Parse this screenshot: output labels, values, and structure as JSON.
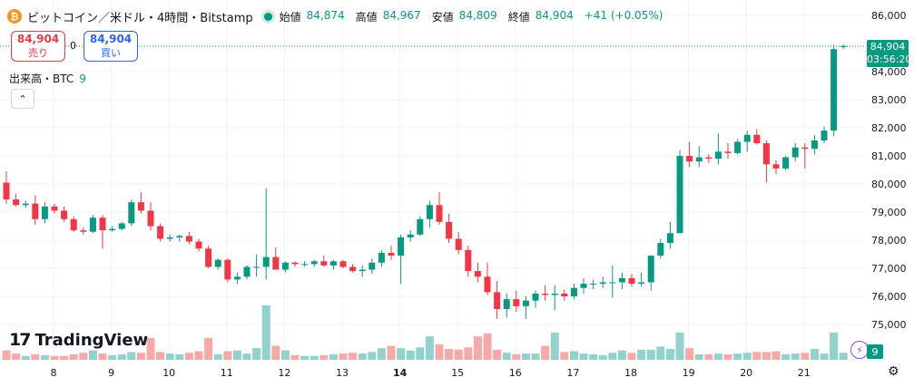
{
  "header": {
    "coin_glyph": "₿",
    "symbol": "ビットコイン／米ドル・4時間・Bitstamp",
    "ohlc": [
      {
        "label": "始値",
        "value": "84,874"
      },
      {
        "label": "高値",
        "value": "84,967"
      },
      {
        "label": "安値",
        "value": "84,809"
      },
      {
        "label": "終値",
        "value": "84,904"
      },
      {
        "label": "",
        "value": "+41 (+0.05%)"
      }
    ]
  },
  "trade": {
    "sell_price": "84,904",
    "sell_label": "売り",
    "buy_price": "84,904",
    "buy_label": "買い",
    "spread": "0"
  },
  "volume_indicator": {
    "label": "出来高・BTC",
    "value": "9"
  },
  "collapse_glyph": "⌃",
  "logo": {
    "mark": "17",
    "name": "TradingView"
  },
  "price_tag": {
    "price": "84,904",
    "countdown": "03:56:20"
  },
  "volume_tag": "9",
  "flash_glyph": "⚡",
  "settings_glyph": "⚙",
  "colors": {
    "up": "#089981",
    "down": "#f23645",
    "up_vol": "#92d2cc",
    "down_vol": "#f7a9a7",
    "grid": "#f0f3fa"
  },
  "chart_data": {
    "type": "candlestick",
    "y_ticks": [
      "86,000",
      "85,000",
      "84,000",
      "83,000",
      "82,000",
      "81,000",
      "80,000",
      "79,000",
      "78,000",
      "77,000",
      "76,000",
      "75,000"
    ],
    "ylim": [
      74300,
      86300
    ],
    "x_ticks": [
      {
        "label": "8",
        "index": 5,
        "bold": false
      },
      {
        "label": "9",
        "index": 11,
        "bold": false
      },
      {
        "label": "10",
        "index": 17,
        "bold": false
      },
      {
        "label": "11",
        "index": 23,
        "bold": false
      },
      {
        "label": "12",
        "index": 29,
        "bold": false
      },
      {
        "label": "13",
        "index": 35,
        "bold": false
      },
      {
        "label": "14",
        "index": 41,
        "bold": true
      },
      {
        "label": "15",
        "index": 47,
        "bold": false
      },
      {
        "label": "16",
        "index": 53,
        "bold": false
      },
      {
        "label": "17",
        "index": 59,
        "bold": false
      },
      {
        "label": "18",
        "index": 65,
        "bold": false
      },
      {
        "label": "19",
        "index": 71,
        "bold": false
      },
      {
        "label": "20",
        "index": 77,
        "bold": false
      },
      {
        "label": "21",
        "index": 83,
        "bold": false
      }
    ],
    "candles": [
      [
        80050,
        80450,
        79300,
        79450,
        12
      ],
      [
        79450,
        79650,
        79200,
        79250,
        8
      ],
      [
        79250,
        79400,
        79150,
        79300,
        5
      ],
      [
        79300,
        79600,
        78550,
        78750,
        7
      ],
      [
        78750,
        79350,
        78600,
        79200,
        6
      ],
      [
        79200,
        79300,
        78950,
        79050,
        5
      ],
      [
        79050,
        79200,
        78650,
        78750,
        5
      ],
      [
        78750,
        78850,
        78300,
        78350,
        7
      ],
      [
        78350,
        78450,
        78200,
        78300,
        9
      ],
      [
        78300,
        78900,
        78250,
        78800,
        12
      ],
      [
        78800,
        78900,
        77700,
        78350,
        8
      ],
      [
        78350,
        78500,
        78300,
        78400,
        6
      ],
      [
        78400,
        78650,
        78350,
        78600,
        7
      ],
      [
        78600,
        79450,
        78500,
        79350,
        10
      ],
      [
        79350,
        79700,
        78950,
        79050,
        9
      ],
      [
        79050,
        79350,
        78350,
        78500,
        28
      ],
      [
        78500,
        78600,
        77950,
        78050,
        10
      ],
      [
        78050,
        78200,
        77950,
        78100,
        8
      ],
      [
        78100,
        78200,
        77950,
        78150,
        7
      ],
      [
        78150,
        78300,
        77850,
        77950,
        9
      ],
      [
        77950,
        78050,
        77600,
        77700,
        11
      ],
      [
        77700,
        77800,
        77000,
        77050,
        28
      ],
      [
        77050,
        77350,
        76950,
        77300,
        7
      ],
      [
        77300,
        77350,
        76500,
        76600,
        11
      ],
      [
        76600,
        76850,
        76450,
        76700,
        12
      ],
      [
        76700,
        77100,
        76600,
        77050,
        8
      ],
      [
        77050,
        77500,
        76700,
        77050,
        15
      ],
      [
        77050,
        79850,
        76600,
        77400,
        70
      ],
      [
        77400,
        77750,
        76950,
        76950,
        18
      ],
      [
        76950,
        77250,
        76850,
        77200,
        12
      ],
      [
        77200,
        77250,
        77050,
        77150,
        6
      ],
      [
        77150,
        77250,
        77050,
        77150,
        5
      ],
      [
        77150,
        77300,
        77050,
        77250,
        5
      ],
      [
        77250,
        77450,
        77050,
        77100,
        6
      ],
      [
        77100,
        77300,
        76950,
        77250,
        7
      ],
      [
        77250,
        77300,
        77000,
        77050,
        8
      ],
      [
        77050,
        77150,
        76850,
        76900,
        9
      ],
      [
        76900,
        77100,
        76700,
        76950,
        8
      ],
      [
        76950,
        77350,
        76800,
        77200,
        10
      ],
      [
        77200,
        77650,
        77050,
        77550,
        15
      ],
      [
        77550,
        77800,
        77300,
        77450,
        18
      ],
      [
        77450,
        78200,
        76450,
        78100,
        15
      ],
      [
        78100,
        78350,
        77950,
        78200,
        12
      ],
      [
        78200,
        78850,
        78150,
        78750,
        16
      ],
      [
        78750,
        79400,
        78450,
        79250,
        30
      ],
      [
        79250,
        79700,
        78550,
        78650,
        20
      ],
      [
        78650,
        78950,
        77900,
        78050,
        14
      ],
      [
        78050,
        78300,
        77500,
        77650,
        13
      ],
      [
        77650,
        77800,
        76700,
        76900,
        16
      ],
      [
        76900,
        77200,
        76500,
        76700,
        30
      ],
      [
        76700,
        77200,
        76050,
        76150,
        34
      ],
      [
        76150,
        76550,
        75200,
        75550,
        13
      ],
      [
        75550,
        76100,
        75250,
        75900,
        9
      ],
      [
        75900,
        76200,
        75450,
        75650,
        7
      ],
      [
        75650,
        76000,
        75200,
        75850,
        8
      ],
      [
        75850,
        76200,
        75600,
        76100,
        8
      ],
      [
        76100,
        76400,
        75850,
        76050,
        18
      ],
      [
        76050,
        76400,
        75500,
        76100,
        35
      ],
      [
        76100,
        76250,
        75850,
        76000,
        10
      ],
      [
        76000,
        76450,
        75900,
        76300,
        11
      ],
      [
        76300,
        76650,
        76100,
        76450,
        8
      ],
      [
        76450,
        76600,
        76250,
        76450,
        7
      ],
      [
        76450,
        76700,
        76300,
        76500,
        6
      ],
      [
        76500,
        77100,
        75950,
        76500,
        9
      ],
      [
        76500,
        76850,
        76250,
        76650,
        12
      ],
      [
        76650,
        76800,
        76350,
        76450,
        9
      ],
      [
        76450,
        76850,
        76350,
        76500,
        13
      ],
      [
        76500,
        77450,
        76200,
        77450,
        13
      ],
      [
        77450,
        78050,
        77350,
        77900,
        17
      ],
      [
        77900,
        78650,
        77700,
        78250,
        14
      ],
      [
        78250,
        81200,
        78250,
        81000,
        35
      ],
      [
        81000,
        81500,
        80600,
        80800,
        15
      ],
      [
        80800,
        81350,
        80600,
        80950,
        7
      ],
      [
        80950,
        81050,
        80750,
        80900,
        7
      ],
      [
        80900,
        81800,
        80700,
        81150,
        8
      ],
      [
        81150,
        81450,
        80900,
        81100,
        7
      ],
      [
        81100,
        81600,
        81050,
        81500,
        8
      ],
      [
        81500,
        81900,
        81150,
        81750,
        9
      ],
      [
        81750,
        81950,
        81400,
        81450,
        10
      ],
      [
        81450,
        81550,
        80050,
        80700,
        10
      ],
      [
        80700,
        80850,
        80350,
        80550,
        11
      ],
      [
        80550,
        81000,
        80500,
        80950,
        7
      ],
      [
        80950,
        81450,
        80800,
        81300,
        8
      ],
      [
        81300,
        81450,
        80550,
        81250,
        9
      ],
      [
        81250,
        81750,
        81050,
        81550,
        14
      ],
      [
        81550,
        82050,
        81450,
        81900,
        8
      ],
      [
        81900,
        84950,
        81700,
        84800,
        35
      ],
      [
        84874,
        84967,
        84809,
        84904,
        9
      ]
    ]
  }
}
